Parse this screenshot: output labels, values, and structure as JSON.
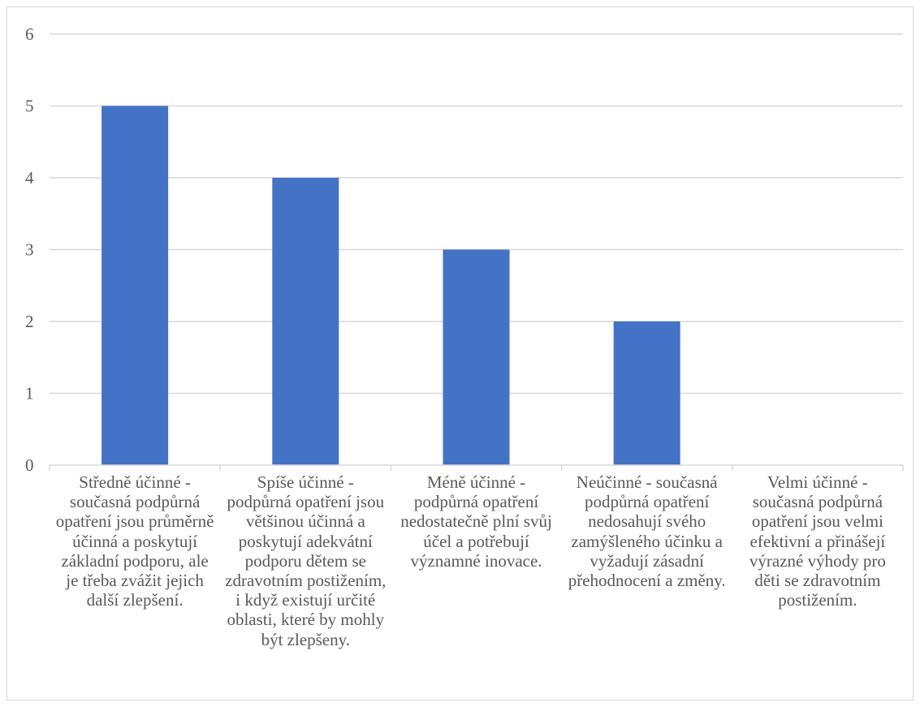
{
  "chart_data": {
    "type": "bar",
    "categories": [
      "Středně účinné - současná podpůrná opatření jsou průměrně účinná a poskytují základní podporu, ale je třeba zvážit jejich další zlepšení.",
      "Spíše účinné - podpůrná opatření jsou většinou účinná a poskytují adekvátní podporu dětem se zdravotním postižením, i když existují určité oblasti, které by mohly být zlepšeny.",
      "Méně účinné - podpůrná opatření nedostatečně plní svůj účel a potřebují významné inovace.",
      "Neúčinné - současná podpůrná opatření nedosahují svého zamýšleného účinku a vyžadují zásadní přehodnocení a změny.",
      "Velmi účinné - současná podpůrná opatření jsou velmi efektivní a přinášejí výrazné výhody pro děti se zdravotním postižením."
    ],
    "values": [
      5,
      4,
      3,
      2,
      0
    ],
    "yticks": [
      "0",
      "1",
      "2",
      "3",
      "4",
      "5",
      "6"
    ],
    "ylim": [
      0,
      6
    ],
    "grid": true,
    "title": "",
    "xlabel": "",
    "ylabel": "",
    "bar_color": "#4472c4",
    "grid_color": "#d9d9d9",
    "text_color": "#595959"
  }
}
